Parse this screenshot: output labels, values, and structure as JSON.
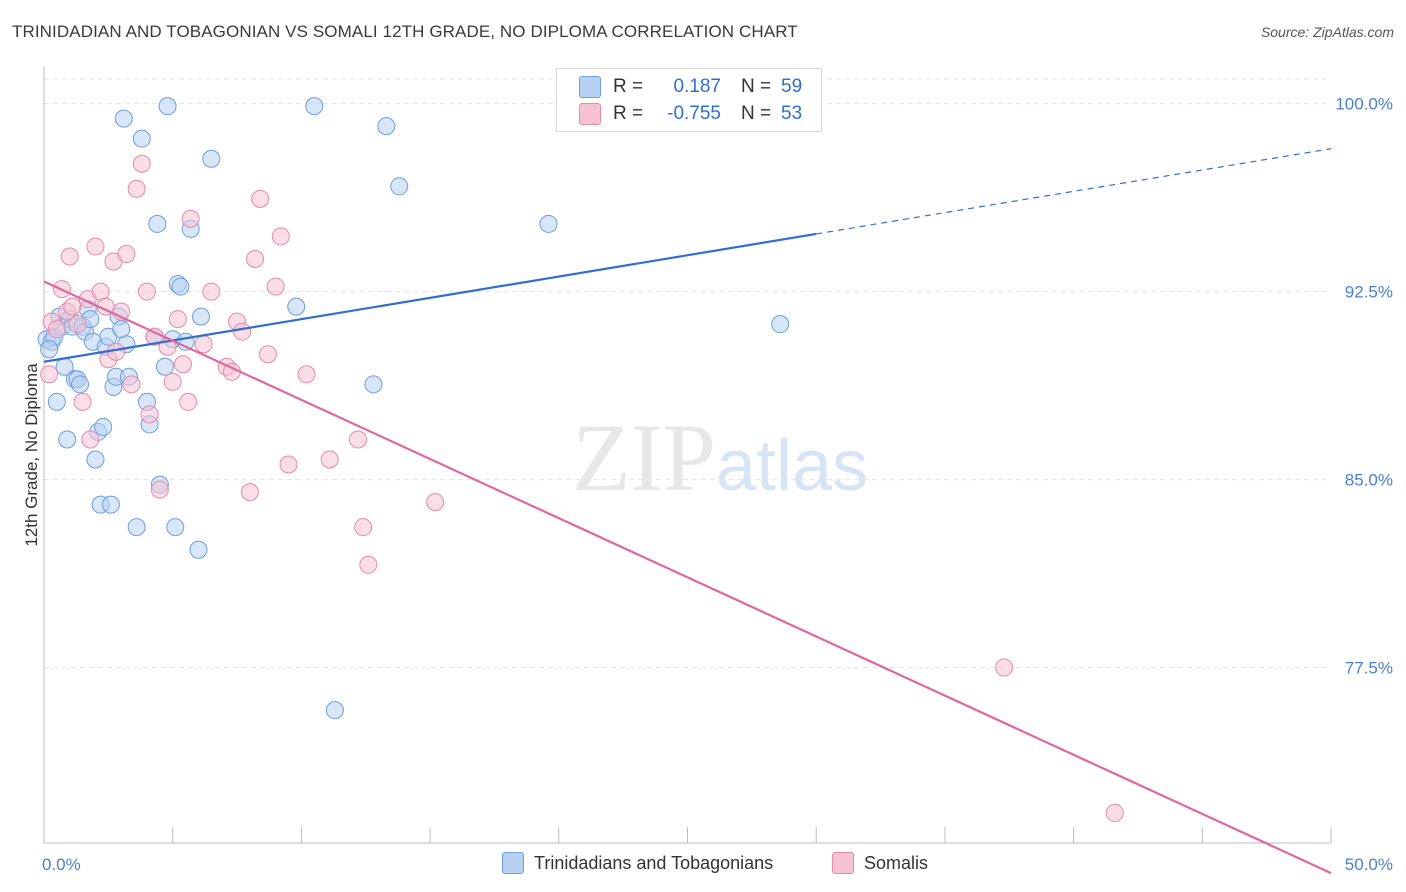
{
  "header": {
    "title": "TRINIDADIAN AND TOBAGONIAN VS SOMALI 12TH GRADE, NO DIPLOMA CORRELATION CHART",
    "source": "Source: ZipAtlas.com"
  },
  "legend": {
    "rows": [
      {
        "r_label": "R =",
        "r_value": "0.187",
        "n_label": "N =",
        "n_value": "59"
      },
      {
        "r_label": "R =",
        "r_value": "-0.755",
        "n_label": "N =",
        "n_value": "53"
      }
    ]
  },
  "bottom_legend": {
    "series1": "Trinidadians and Tobagonians",
    "series2": "Somalis"
  },
  "chart_data": {
    "type": "scatter",
    "title": "TRINIDADIAN AND TOBAGONIAN VS SOMALI 12TH GRADE, NO DIPLOMA CORRELATION CHART",
    "xlabel": "",
    "ylabel": "12th Grade, No Diploma",
    "xlim": [
      0,
      50
    ],
    "ylim": [
      70.5,
      101.5
    ],
    "x_tick_labels": [
      "0.0%",
      "50.0%"
    ],
    "y_ticks": [
      77.5,
      85.0,
      92.5,
      100.0
    ],
    "y_tick_labels": [
      "77.5%",
      "85.0%",
      "92.5%",
      "100.0%"
    ],
    "grid": true,
    "legend_placement": "top-center",
    "watermark": "ZIPatlas",
    "colors": {
      "series1": "#6a9ee0",
      "series1_fill": "#b8d1f3",
      "series2": "#e58aa8",
      "series2_fill": "#f6c3d3",
      "trend1": "#2f6fd0",
      "trend2": "#e0679a",
      "tick_label": "#4a7fd0"
    },
    "series": [
      {
        "name": "Trinidadians and Tobagonians",
        "r": 0.187,
        "n": 59,
        "trend": {
          "x": [
            0,
            30
          ],
          "y": [
            89.7,
            94.8
          ],
          "dashed_to": [
            50,
            98.2
          ]
        },
        "points": [
          [
            0.1,
            90.6
          ],
          [
            0.3,
            90.5
          ],
          [
            0.4,
            90.7
          ],
          [
            0.5,
            88.1
          ],
          [
            0.6,
            91.5
          ],
          [
            0.7,
            91.1
          ],
          [
            0.8,
            89.5
          ],
          [
            0.9,
            86.6
          ],
          [
            1.0,
            91.4
          ],
          [
            1.1,
            91.1
          ],
          [
            1.2,
            89.0
          ],
          [
            1.3,
            89.0
          ],
          [
            1.4,
            88.8
          ],
          [
            1.5,
            91.1
          ],
          [
            1.6,
            90.9
          ],
          [
            1.7,
            91.8
          ],
          [
            1.8,
            91.4
          ],
          [
            1.9,
            90.5
          ],
          [
            2.0,
            85.8
          ],
          [
            2.1,
            86.9
          ],
          [
            2.2,
            84.0
          ],
          [
            2.3,
            87.1
          ],
          [
            2.4,
            90.3
          ],
          [
            2.5,
            90.7
          ],
          [
            2.6,
            84.0
          ],
          [
            2.7,
            88.7
          ],
          [
            2.8,
            89.1
          ],
          [
            2.9,
            91.5
          ],
          [
            3.0,
            91.0
          ],
          [
            3.1,
            99.4
          ],
          [
            3.2,
            90.4
          ],
          [
            3.3,
            89.1
          ],
          [
            3.6,
            83.1
          ],
          [
            3.8,
            98.6
          ],
          [
            4.0,
            88.1
          ],
          [
            4.1,
            87.2
          ],
          [
            4.3,
            90.7
          ],
          [
            4.4,
            95.2
          ],
          [
            4.5,
            84.8
          ],
          [
            4.7,
            89.5
          ],
          [
            4.8,
            99.9
          ],
          [
            5.0,
            90.6
          ],
          [
            5.1,
            83.1
          ],
          [
            5.2,
            92.8
          ],
          [
            5.3,
            92.7
          ],
          [
            5.5,
            90.5
          ],
          [
            5.7,
            95.0
          ],
          [
            6.0,
            82.2
          ],
          [
            6.1,
            91.5
          ],
          [
            6.5,
            97.8
          ],
          [
            9.8,
            91.9
          ],
          [
            10.5,
            99.9
          ],
          [
            11.3,
            75.8
          ],
          [
            12.8,
            88.8
          ],
          [
            13.3,
            99.1
          ],
          [
            13.8,
            96.7
          ],
          [
            19.6,
            95.2
          ],
          [
            28.6,
            91.2
          ],
          [
            0.2,
            90.2
          ]
        ]
      },
      {
        "name": "Somalis",
        "r": -0.755,
        "n": 53,
        "trend": {
          "x": [
            0,
            50
          ],
          "y": [
            92.9,
            69.3
          ]
        },
        "points": [
          [
            0.2,
            89.2
          ],
          [
            0.3,
            91.3
          ],
          [
            0.5,
            91.0
          ],
          [
            0.7,
            92.6
          ],
          [
            0.9,
            91.7
          ],
          [
            1.0,
            93.9
          ],
          [
            1.1,
            91.9
          ],
          [
            1.3,
            91.2
          ],
          [
            1.5,
            88.1
          ],
          [
            1.7,
            92.2
          ],
          [
            1.8,
            86.6
          ],
          [
            2.0,
            94.3
          ],
          [
            2.2,
            92.5
          ],
          [
            2.4,
            91.9
          ],
          [
            2.5,
            89.8
          ],
          [
            2.7,
            93.7
          ],
          [
            2.8,
            90.1
          ],
          [
            3.0,
            91.7
          ],
          [
            3.2,
            94.0
          ],
          [
            3.4,
            88.8
          ],
          [
            3.6,
            96.6
          ],
          [
            3.8,
            97.6
          ],
          [
            4.0,
            92.5
          ],
          [
            4.1,
            87.6
          ],
          [
            4.3,
            90.7
          ],
          [
            4.5,
            84.6
          ],
          [
            4.8,
            90.3
          ],
          [
            5.0,
            88.9
          ],
          [
            5.2,
            91.4
          ],
          [
            5.4,
            89.6
          ],
          [
            5.6,
            88.1
          ],
          [
            5.7,
            95.4
          ],
          [
            6.2,
            90.4
          ],
          [
            6.5,
            92.5
          ],
          [
            7.1,
            89.5
          ],
          [
            7.3,
            89.3
          ],
          [
            7.5,
            91.3
          ],
          [
            7.7,
            90.9
          ],
          [
            8.0,
            84.5
          ],
          [
            8.2,
            93.8
          ],
          [
            8.4,
            96.2
          ],
          [
            8.7,
            90.0
          ],
          [
            9.0,
            92.7
          ],
          [
            9.2,
            94.7
          ],
          [
            9.5,
            85.6
          ],
          [
            10.2,
            89.2
          ],
          [
            11.1,
            85.8
          ],
          [
            12.2,
            86.6
          ],
          [
            12.4,
            83.1
          ],
          [
            12.6,
            81.6
          ],
          [
            15.2,
            84.1
          ],
          [
            37.3,
            77.5
          ],
          [
            41.6,
            71.7
          ]
        ]
      }
    ]
  }
}
